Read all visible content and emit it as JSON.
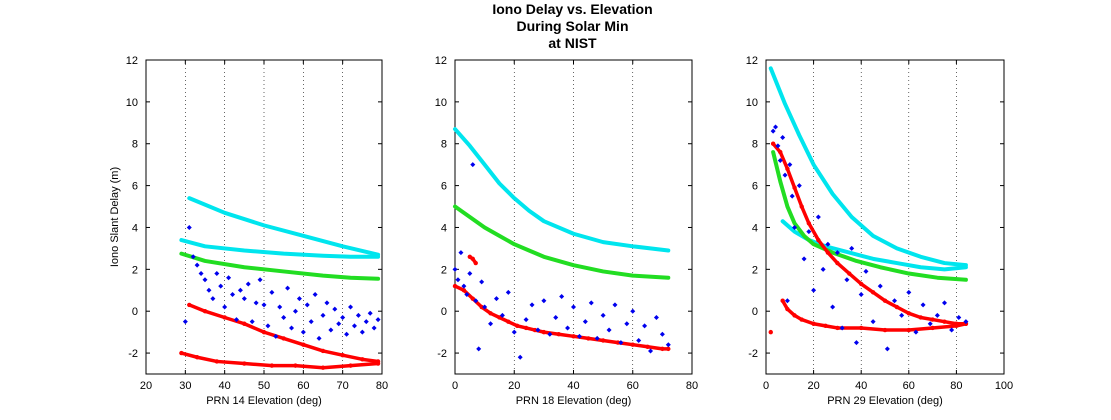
{
  "title_lines": [
    "Iono Delay vs. Elevation",
    "During Solar Min",
    "at NIST"
  ],
  "chart_data": [
    {
      "type": "scatter",
      "xlabel": "PRN 14 Elevation (deg)",
      "ylabel": "Iono Slant Delay (m)",
      "xlim": [
        20,
        80
      ],
      "ylim": [
        -3,
        12
      ],
      "xticks": [
        20,
        30,
        40,
        50,
        60,
        70,
        80
      ],
      "yticks": [
        -2,
        0,
        2,
        4,
        6,
        8,
        10,
        12
      ],
      "grid": "x-dotted",
      "series": [
        {
          "color": "#00e5ee",
          "style": "line",
          "x": [
            31,
            40,
            50,
            60,
            70,
            79
          ],
          "y": [
            5.4,
            4.7,
            4.1,
            3.6,
            3.1,
            2.7
          ]
        },
        {
          "color": "#00e5ee",
          "style": "line",
          "x": [
            29,
            35,
            45,
            55,
            65,
            72,
            79
          ],
          "y": [
            3.4,
            3.1,
            2.9,
            2.75,
            2.65,
            2.6,
            2.6
          ]
        },
        {
          "color": "#22dd22",
          "style": "line",
          "x": [
            29,
            35,
            45,
            55,
            65,
            72,
            79
          ],
          "y": [
            2.75,
            2.4,
            2.1,
            1.9,
            1.7,
            1.6,
            1.55
          ]
        },
        {
          "color": "#ff0000",
          "style": "markers",
          "x": [
            31,
            35,
            40,
            45,
            50,
            55,
            60,
            65,
            70,
            75,
            79
          ],
          "y": [
            0.3,
            0.0,
            -0.3,
            -0.6,
            -1.0,
            -1.3,
            -1.6,
            -1.9,
            -2.1,
            -2.3,
            -2.4
          ]
        },
        {
          "color": "#ff0000",
          "style": "markers",
          "x": [
            29,
            33,
            38,
            45,
            52,
            58,
            65,
            72,
            79
          ],
          "y": [
            -2.0,
            -2.2,
            -2.4,
            -2.5,
            -2.6,
            -2.6,
            -2.7,
            -2.6,
            -2.5
          ]
        },
        {
          "color": "#0000ee",
          "style": "points",
          "x": [
            30,
            31,
            32,
            33,
            34,
            35,
            36,
            37,
            38,
            39,
            40,
            41,
            42,
            43,
            44,
            45,
            46,
            47,
            48,
            49,
            50,
            51,
            52,
            53,
            54,
            55,
            56,
            57,
            58,
            59,
            60,
            61,
            62,
            63,
            64,
            65,
            66,
            67,
            68,
            69,
            70,
            71,
            72,
            73,
            74,
            75,
            76,
            77,
            78,
            79
          ],
          "y": [
            -0.5,
            4.0,
            2.6,
            2.2,
            1.8,
            1.5,
            1.0,
            0.6,
            1.8,
            1.2,
            0.2,
            1.6,
            0.8,
            -0.4,
            1.0,
            0.6,
            1.3,
            -0.5,
            0.4,
            1.5,
            0.3,
            -0.7,
            0.9,
            -1.2,
            0.2,
            -0.3,
            1.1,
            -0.8,
            0.0,
            0.6,
            -1.0,
            0.3,
            -0.5,
            0.8,
            -1.3,
            -0.2,
            0.4,
            -0.9,
            0.1,
            -0.6,
            -0.3,
            -1.1,
            0.2,
            -0.7,
            -0.2,
            -1.0,
            -0.5,
            -0.1,
            -0.8,
            -0.4
          ]
        }
      ]
    },
    {
      "type": "scatter",
      "xlabel": "PRN 18 Elevation (deg)",
      "ylabel": "",
      "xlim": [
        0,
        80
      ],
      "ylim": [
        -3,
        12
      ],
      "xticks": [
        0,
        20,
        40,
        60,
        80
      ],
      "yticks": [
        -2,
        0,
        2,
        4,
        6,
        8,
        10,
        12
      ],
      "grid": "x-dotted",
      "series": [
        {
          "color": "#00e5ee",
          "style": "line",
          "x": [
            0,
            5,
            10,
            15,
            20,
            25,
            30,
            40,
            50,
            60,
            72
          ],
          "y": [
            8.7,
            7.9,
            7.0,
            6.1,
            5.4,
            4.8,
            4.3,
            3.7,
            3.3,
            3.1,
            2.9
          ]
        },
        {
          "color": "#22dd22",
          "style": "line",
          "x": [
            0,
            5,
            10,
            15,
            20,
            25,
            30,
            40,
            50,
            60,
            72
          ],
          "y": [
            5.0,
            4.5,
            4.0,
            3.6,
            3.2,
            2.9,
            2.6,
            2.2,
            1.9,
            1.7,
            1.6
          ]
        },
        {
          "color": "#ff0000",
          "style": "markers",
          "x": [
            0,
            3,
            6,
            9,
            12,
            15,
            18,
            21,
            24,
            27,
            30,
            35,
            40,
            45,
            50,
            55,
            60,
            65,
            70,
            72
          ],
          "y": [
            1.2,
            1.0,
            0.6,
            0.2,
            -0.1,
            -0.3,
            -0.5,
            -0.7,
            -0.8,
            -0.9,
            -1.0,
            -1.1,
            -1.2,
            -1.3,
            -1.4,
            -1.5,
            -1.6,
            -1.7,
            -1.8,
            -1.8
          ]
        },
        {
          "color": "#ff0000",
          "style": "markers",
          "x": [
            5,
            6,
            7
          ],
          "y": [
            2.6,
            2.5,
            2.3
          ]
        },
        {
          "color": "#0000ee",
          "style": "points",
          "x": [
            0,
            1,
            2,
            3,
            4,
            5,
            6,
            7,
            8,
            9,
            10,
            12,
            14,
            16,
            18,
            20,
            22,
            24,
            26,
            28,
            30,
            32,
            34,
            36,
            38,
            40,
            42,
            44,
            46,
            48,
            50,
            52,
            54,
            56,
            58,
            60,
            62,
            64,
            66,
            68,
            70,
            72
          ],
          "y": [
            2.0,
            1.5,
            2.8,
            1.2,
            0.8,
            1.8,
            7.0,
            0.5,
            -1.8,
            1.4,
            0.2,
            -0.6,
            0.6,
            -0.2,
            0.9,
            -1.0,
            -2.2,
            -0.4,
            0.3,
            -0.9,
            0.5,
            -1.1,
            -0.3,
            0.7,
            -0.8,
            0.2,
            -1.2,
            -0.5,
            0.4,
            -1.3,
            -0.2,
            -0.9,
            0.3,
            -1.5,
            -0.6,
            0.0,
            -1.4,
            -0.7,
            -1.9,
            -0.3,
            -1.1,
            -1.6
          ]
        }
      ]
    },
    {
      "type": "scatter",
      "xlabel": "PRN 29 Elevation (deg)",
      "ylabel": "",
      "xlim": [
        0,
        100
      ],
      "ylim": [
        -3,
        12
      ],
      "xticks": [
        0,
        20,
        40,
        60,
        80,
        100
      ],
      "yticks": [
        -2,
        0,
        2,
        4,
        6,
        8,
        10,
        12
      ],
      "grid": "x-dotted",
      "series": [
        {
          "color": "#00e5ee",
          "style": "line",
          "x": [
            2,
            8,
            14,
            20,
            28,
            36,
            45,
            55,
            65,
            75,
            84
          ],
          "y": [
            11.6,
            9.9,
            8.4,
            7.0,
            5.6,
            4.5,
            3.6,
            3.0,
            2.6,
            2.3,
            2.2
          ]
        },
        {
          "color": "#00e5ee",
          "style": "line",
          "x": [
            7,
            12,
            18,
            25,
            35,
            45,
            55,
            65,
            75,
            84
          ],
          "y": [
            4.3,
            3.8,
            3.4,
            3.1,
            2.8,
            2.5,
            2.3,
            2.1,
            2.0,
            2.1
          ]
        },
        {
          "color": "#22dd22",
          "style": "line",
          "x": [
            3,
            6,
            9,
            12,
            16,
            20,
            28,
            38,
            48,
            60,
            72,
            84
          ],
          "y": [
            7.6,
            6.2,
            5.0,
            4.2,
            3.6,
            3.2,
            2.8,
            2.4,
            2.1,
            1.8,
            1.6,
            1.5
          ]
        },
        {
          "color": "#ff0000",
          "style": "markers",
          "x": [
            3,
            6,
            9,
            12,
            15,
            18,
            22,
            26,
            30,
            35,
            40,
            45,
            50,
            55,
            60,
            65,
            70,
            75,
            80,
            84
          ],
          "y": [
            8.0,
            7.6,
            6.8,
            5.9,
            5.0,
            4.2,
            3.4,
            2.8,
            2.3,
            1.8,
            1.3,
            0.9,
            0.5,
            0.2,
            -0.1,
            -0.3,
            -0.4,
            -0.5,
            -0.6,
            -0.6
          ]
        },
        {
          "color": "#ff0000",
          "style": "markers",
          "x": [
            7,
            9,
            12,
            15,
            20,
            25,
            30,
            40,
            50,
            60,
            70,
            80,
            84
          ],
          "y": [
            0.5,
            0.1,
            -0.2,
            -0.4,
            -0.6,
            -0.7,
            -0.8,
            -0.8,
            -0.9,
            -0.9,
            -0.8,
            -0.7,
            -0.6
          ]
        },
        {
          "color": "#ff0000",
          "style": "markers",
          "x": [
            2
          ],
          "y": [
            -1.0
          ]
        },
        {
          "color": "#0000ee",
          "style": "points",
          "x": [
            3,
            4,
            5,
            6,
            7,
            8,
            9,
            10,
            11,
            12,
            14,
            16,
            18,
            20,
            22,
            24,
            26,
            28,
            30,
            32,
            34,
            36,
            38,
            40,
            42,
            45,
            48,
            51,
            54,
            57,
            60,
            63,
            66,
            69,
            72,
            75,
            78,
            81,
            84
          ],
          "y": [
            8.6,
            8.8,
            7.9,
            7.2,
            8.3,
            6.5,
            0.5,
            7.0,
            5.5,
            4.0,
            6.0,
            2.5,
            3.8,
            1.0,
            4.5,
            2.0,
            3.2,
            0.2,
            2.8,
            -0.8,
            1.5,
            3.0,
            -1.5,
            0.8,
            1.9,
            -0.5,
            1.2,
            -1.8,
            0.5,
            -0.2,
            0.9,
            -1.0,
            0.3,
            -0.6,
            -0.2,
            0.4,
            -0.9,
            -0.3,
            -0.5
          ]
        }
      ]
    }
  ]
}
